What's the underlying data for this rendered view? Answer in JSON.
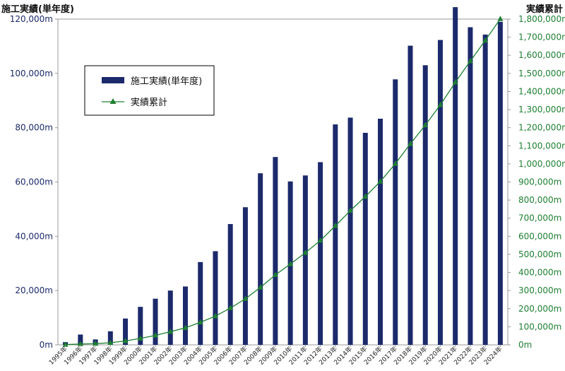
{
  "chart_data": {
    "type": "bar",
    "left_axis_title": "施工実績(単年度)",
    "right_axis_title": "実績累計",
    "categories": [
      "1995年",
      "1996年",
      "1997年",
      "1998年",
      "1999年",
      "2000年",
      "2001年",
      "2002年",
      "2003年",
      "2004年",
      "2005年",
      "2006年",
      "2007年",
      "2008年",
      "2009年",
      "2010年",
      "2011年",
      "2012年",
      "2013年",
      "2014年",
      "2015年",
      "2016年",
      "2017年",
      "2018年",
      "2019年",
      "2020年",
      "2021年",
      "2022年",
      "2023年",
      "2024年"
    ],
    "series": [
      {
        "name": "施工実績(単年度)",
        "type": "bar",
        "axis": "left",
        "color": "#1c2a6b",
        "values": [
          1000,
          3800,
          2000,
          5000,
          9700,
          14000,
          17000,
          20000,
          21500,
          30500,
          34500,
          44500,
          50700,
          63200,
          69200,
          60200,
          62400,
          67300,
          81200,
          83700,
          78100,
          83300,
          97800,
          110200,
          103000,
          112300,
          124400,
          117000,
          114300,
          119000
        ]
      },
      {
        "name": "実績累計",
        "type": "line",
        "axis": "right",
        "color": "#1e7f32",
        "values": [
          1000,
          4800,
          6800,
          11800,
          21500,
          35500,
          52500,
          72500,
          94000,
          124500,
          159000,
          203500,
          254200,
          317400,
          386600,
          446800,
          509200,
          576500,
          657700,
          741400,
          819500,
          902800,
          1000600,
          1110800,
          1213800,
          1326100,
          1450500,
          1567500,
          1681800,
          1800800
        ]
      }
    ],
    "left_axis": {
      "ylim": [
        0,
        120000
      ],
      "ticks": [
        0,
        20000,
        40000,
        60000,
        80000,
        100000,
        120000
      ],
      "tick_labels": [
        "0m",
        "20,000m",
        "40,000m",
        "60,000m",
        "80,000m",
        "100,000m",
        "120,000m"
      ]
    },
    "right_axis": {
      "ylim": [
        0,
        1800000
      ],
      "ticks": [
        0,
        100000,
        200000,
        300000,
        400000,
        500000,
        600000,
        700000,
        800000,
        900000,
        1000000,
        1100000,
        1200000,
        1300000,
        1400000,
        1500000,
        1600000,
        1700000,
        1800000
      ],
      "tick_labels": [
        "0m",
        "100,000m",
        "200,000m",
        "300,000m",
        "400,000m",
        "500,000m",
        "600,000m",
        "700,000m",
        "800,000m",
        "900,000m",
        "1,000,000m",
        "1,100,000m",
        "1,200,000m",
        "1,300,000m",
        "1,400,000m",
        "1,500,000m",
        "1,600,000m",
        "1,700,000m",
        "1,800,000m"
      ]
    },
    "legend": {
      "placement": "upper-left",
      "entries": [
        "施工実績(単年度)",
        "実績累計"
      ]
    },
    "grid": false
  }
}
